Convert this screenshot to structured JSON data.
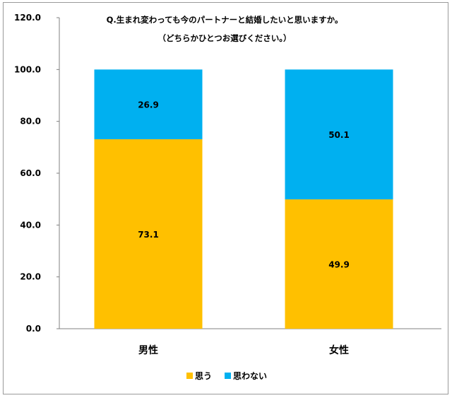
{
  "chart_data": {
    "type": "bar",
    "stacked": true,
    "title": "Q.生まれ変わっても今のパートナーと結婚したいと思いますか。",
    "subtitle": "（どちらかひとつお選びください。）",
    "categories": [
      "男性",
      "女性"
    ],
    "series": [
      {
        "name": "思う",
        "values": [
          73.1,
          49.9
        ],
        "color": "#FFC000"
      },
      {
        "name": "思わない",
        "values": [
          26.9,
          50.1
        ],
        "color": "#00B0F0"
      }
    ],
    "ylim": [
      0,
      120
    ],
    "yticks": [
      "0.0",
      "20.0",
      "40.0",
      "60.0",
      "80.0",
      "100.0",
      "120.0"
    ],
    "xlabel": "",
    "ylabel": "",
    "grid": false,
    "legend_position": "bottom"
  }
}
